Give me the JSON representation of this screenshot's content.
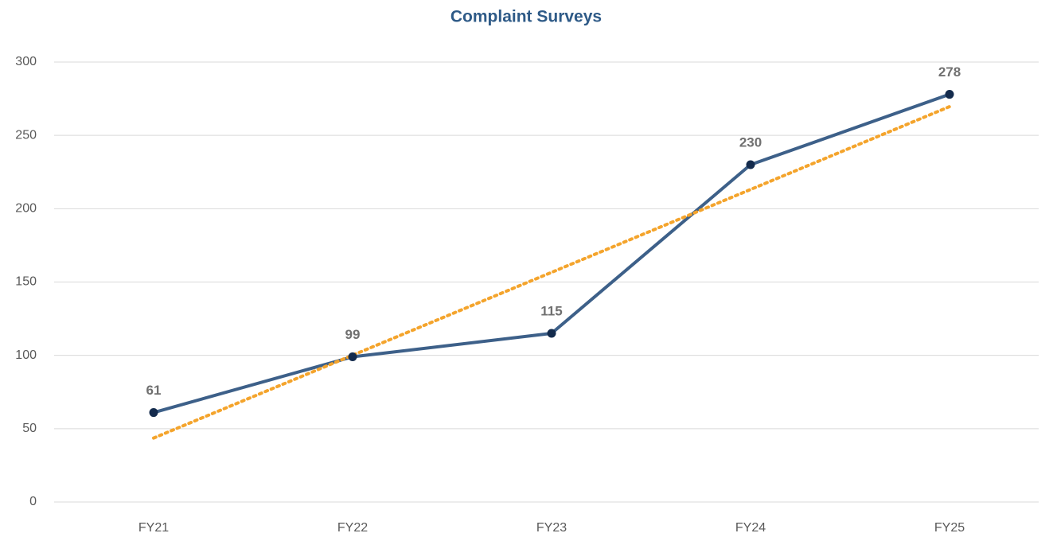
{
  "chart_data": {
    "type": "line",
    "title": "Complaint Surveys",
    "categories": [
      "FY21",
      "FY22",
      "FY23",
      "FY24",
      "FY25"
    ],
    "series": [
      {
        "color": "#3d6089",
        "marker_color": "#142b4d",
        "values": [
          61,
          99,
          115,
          230,
          278
        ]
      }
    ],
    "trendline": {
      "color": "#f4a42c",
      "values": [
        43.6,
        100.1,
        156.6,
        213.1,
        269.6
      ]
    },
    "ylim": [
      0,
      300
    ],
    "yticks": [
      0,
      50,
      100,
      150,
      200,
      250,
      300
    ],
    "grid": true
  }
}
